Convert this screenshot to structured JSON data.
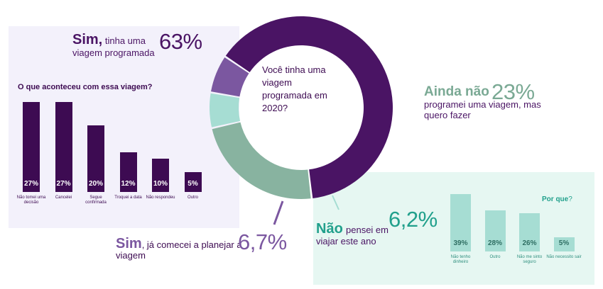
{
  "donut": {
    "question": "Você tinha uma viagem programada em 2020?",
    "segments": [
      {
        "name": "sim_programada",
        "value": 63,
        "color": "#4a1464"
      },
      {
        "name": "ainda_nao",
        "value": 23,
        "color": "#88b3a0"
      },
      {
        "name": "nao_pensei",
        "value": 6.2,
        "color": "#a6ddd3"
      },
      {
        "name": "sim_comecei",
        "value": 6.7,
        "color": "#7b57a0"
      }
    ]
  },
  "labels": {
    "sim63": {
      "lead": "Sim,",
      "rest": " tinha uma",
      "line2": "viagem programada",
      "pct": "63%"
    },
    "aindanao": {
      "lead": "Ainda não",
      "pct": "23%",
      "line1": "programei uma viagem, mas",
      "line2": "quero fazer"
    },
    "nao": {
      "lead": "Não",
      "rest": "pensei em",
      "line2": "viajar este ano",
      "pct": "6,2%"
    },
    "sim67": {
      "lead": "Sim",
      "rest": ", já comecei a planejar a",
      "line2": "viagem",
      "pct": "6,7%"
    }
  },
  "left_panel": {
    "title": "O que aconteceu com essa viagem?"
  },
  "right_panel": {
    "title_bold": "Por que",
    "title_rest": "?"
  },
  "chart_data": [
    {
      "type": "donut",
      "title": "Você tinha uma viagem programada em 2020?",
      "categories": [
        "Sim, tinha uma viagem programada",
        "Ainda não programei uma viagem, mas quero fazer",
        "Não pensei em viajar este ano",
        "Sim, já comecei a planejar a viagem"
      ],
      "values": [
        63,
        23,
        6.2,
        6.7
      ]
    },
    {
      "type": "bar",
      "title": "O que aconteceu com essa viagem?",
      "categories": [
        "Não tomei uma decisão",
        "Cancelei",
        "Segue confirmada",
        "Troquei a data",
        "Não respondeu",
        "Outro"
      ],
      "values": [
        27,
        27,
        20,
        12,
        10,
        5
      ],
      "value_labels": [
        "27%",
        "27%",
        "20%",
        "12%",
        "10%",
        "5%"
      ],
      "color": "#3d0b52"
    },
    {
      "type": "bar",
      "title": "Por que?",
      "categories": [
        "Não tenho dinheiro",
        "Outro",
        "Não me sinto seguro",
        "Não necessito sair"
      ],
      "values": [
        39,
        28,
        26,
        5
      ],
      "value_labels": [
        "39%",
        "28%",
        "26%",
        "5%"
      ],
      "color": "#a6ddd3"
    }
  ]
}
